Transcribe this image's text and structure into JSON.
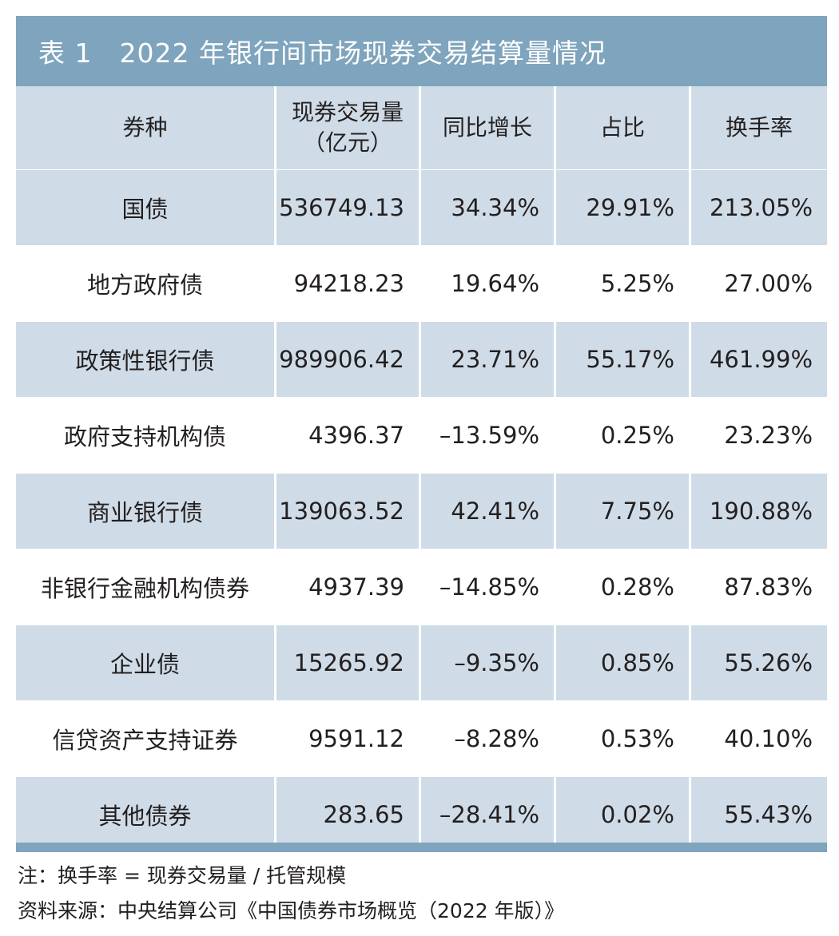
{
  "title": "表 1　2022 年银行间市场现券交易结算量情况",
  "table": {
    "headers": [
      "券种",
      "现券交易量\n（亿元）",
      "同比增长",
      "占比",
      "换手率"
    ],
    "rows": [
      [
        "国债",
        "536749.13",
        "34.34%",
        "29.91%",
        "213.05%"
      ],
      [
        "地方政府债",
        "94218.23",
        "19.64%",
        "5.25%",
        "27.00%"
      ],
      [
        "政策性银行债",
        "989906.42",
        "23.71%",
        "55.17%",
        "461.99%"
      ],
      [
        "政府支持机构债",
        "4396.37",
        "–13.59%",
        "0.25%",
        "23.23%"
      ],
      [
        "商业银行债",
        "139063.52",
        "42.41%",
        "7.75%",
        "190.88%"
      ],
      [
        "非银行金融机构债券",
        "4937.39",
        "–14.85%",
        "0.28%",
        "87.83%"
      ],
      [
        "企业债",
        "15265.92",
        "–9.35%",
        "0.85%",
        "55.26%"
      ],
      [
        "信贷资产支持证券",
        "9591.12",
        "–8.28%",
        "0.53%",
        "40.10%"
      ],
      [
        "其他债券",
        "283.65",
        "–28.41%",
        "0.02%",
        "55.43%"
      ]
    ]
  },
  "notes": {
    "note": "注：换手率 = 现券交易量 / 托管规模",
    "source": "资料来源：中央结算公司《中国债券市场概览（2022 年版）》"
  },
  "colors": {
    "title_bg": "#7fa4bd",
    "band_bg": "#cfdce7",
    "text": "#231f20"
  }
}
